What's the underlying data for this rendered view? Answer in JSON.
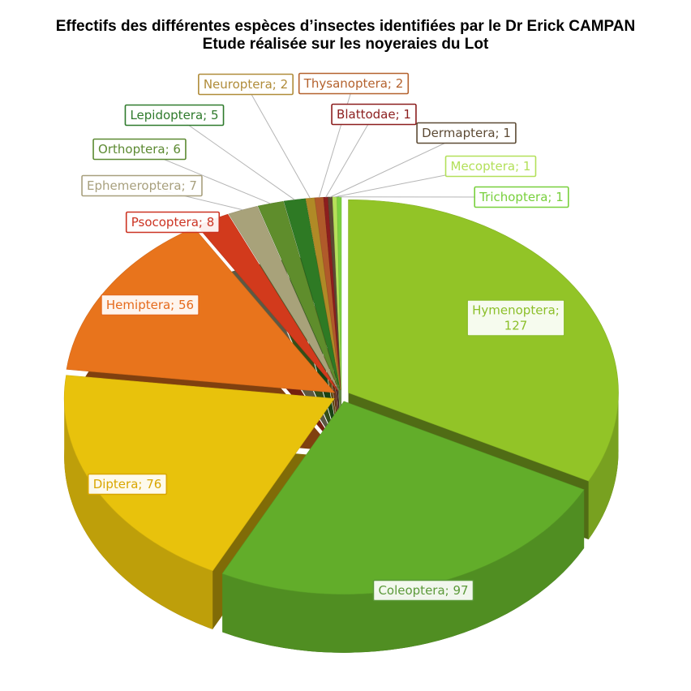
{
  "chart_title": {
    "line1": "Effectifs des différentes espèces d’insectes identifiées par le Dr Erick CAMPAN",
    "line2": "Etude réalisée sur les noyeraies du Lot"
  },
  "chart_data": {
    "type": "pie",
    "title": "Effectifs des différentes espèces d’insectes identifiées par le Dr Erick CAMPAN — Etude réalisée sur les noyeraies du Lot",
    "label_format": "{name}; {value}",
    "slices": [
      {
        "name": "Hymenoptera",
        "value": 127,
        "color": "#92c427",
        "label_color": "#8cbf2a"
      },
      {
        "name": "Coleoptera",
        "value": 97,
        "color": "#62ad2a",
        "label_color": "#5c9a3a"
      },
      {
        "name": "Diptera",
        "value": 76,
        "color": "#e8c20c",
        "label_color": "#d9a600"
      },
      {
        "name": "Hemiptera",
        "value": 56,
        "color": "#e8741c",
        "label_color": "#e56a1c"
      },
      {
        "name": "Psocoptera",
        "value": 8,
        "color": "#d23a1c",
        "label_color": "#cc3322"
      },
      {
        "name": "Ephemeroptera",
        "value": 7,
        "color": "#a8a27a",
        "label_color": "#a8a07e"
      },
      {
        "name": "Orthoptera",
        "value": 6,
        "color": "#5f8d2c",
        "label_color": "#5c8a32"
      },
      {
        "name": "Lepidoptera",
        "value": 5,
        "color": "#2e7a24",
        "label_color": "#2f7a2c"
      },
      {
        "name": "Neuroptera",
        "value": 2,
        "color": "#b08a26",
        "label_color": "#b08c3a"
      },
      {
        "name": "Thysanoptera",
        "value": 2,
        "color": "#b05a2a",
        "label_color": "#b4622e"
      },
      {
        "name": "Blattodae",
        "value": 1,
        "color": "#8c1e1e",
        "label_color": "#8c1e1e"
      },
      {
        "name": "Dermaptera",
        "value": 1,
        "color": "#5c4a34",
        "label_color": "#5c4a34"
      },
      {
        "name": "Mecoptera",
        "value": 1,
        "color": "#b6e05a",
        "label_color": "#b3e05a"
      },
      {
        "name": "Trichoptera",
        "value": 1,
        "color": "#7cd040",
        "label_color": "#78d03c"
      }
    ],
    "legend": "none",
    "style": "3d-exploded"
  }
}
